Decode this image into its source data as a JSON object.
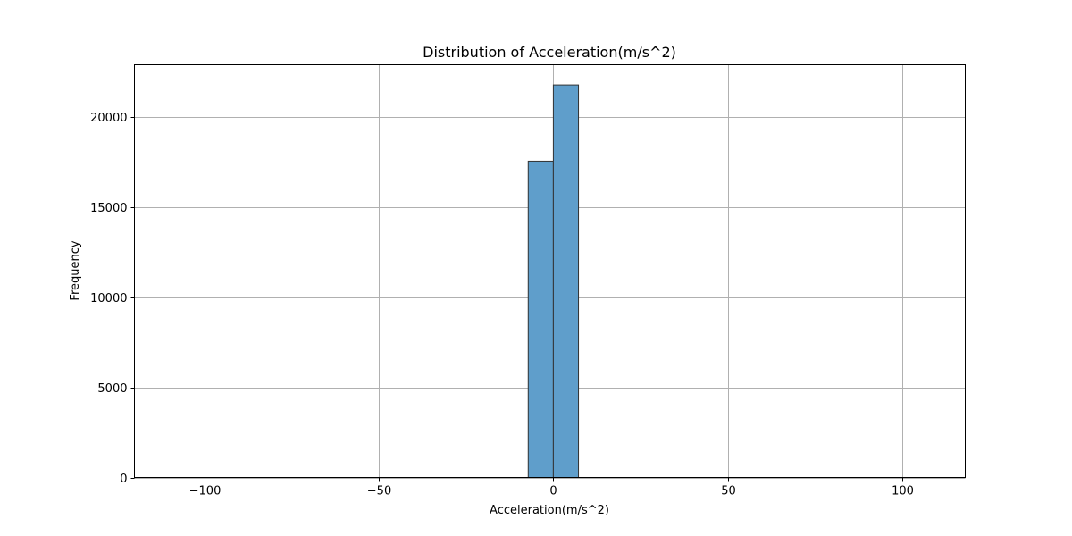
{
  "chart_data": {
    "type": "bar",
    "title": "Distribution of Acceleration(m/s^2)",
    "xlabel": "Acceleration(m/s^2)",
    "ylabel": "Frequency",
    "xlim": [
      -120,
      118
    ],
    "ylim": [
      0,
      22900
    ],
    "xticks": [
      -100,
      -50,
      0,
      50,
      100
    ],
    "xtick_labels": [
      "−100",
      "−50",
      "0",
      "50",
      "100"
    ],
    "yticks": [
      0,
      5000,
      10000,
      15000,
      20000
    ],
    "ytick_labels": [
      "0",
      "5000",
      "10000",
      "15000",
      "20000"
    ],
    "grid": true,
    "bar_color": "#5f9ecb",
    "edge_color": "#333333",
    "bins": [
      {
        "x0": -109.2,
        "x1": -102.0,
        "count": 0
      },
      {
        "x0": -102.0,
        "x1": -94.8,
        "count": 0
      },
      {
        "x0": -94.8,
        "x1": -87.6,
        "count": 0
      },
      {
        "x0": -87.6,
        "x1": -80.4,
        "count": 0
      },
      {
        "x0": -80.4,
        "x1": -73.2,
        "count": 0
      },
      {
        "x0": -73.2,
        "x1": -66.0,
        "count": 0
      },
      {
        "x0": -66.0,
        "x1": -58.8,
        "count": 0
      },
      {
        "x0": -58.8,
        "x1": -51.6,
        "count": 0
      },
      {
        "x0": -51.6,
        "x1": -44.4,
        "count": 0
      },
      {
        "x0": -44.4,
        "x1": -37.2,
        "count": 0
      },
      {
        "x0": -37.2,
        "x1": -30.0,
        "count": 0
      },
      {
        "x0": -30.0,
        "x1": -22.8,
        "count": 0
      },
      {
        "x0": -22.8,
        "x1": -15.6,
        "count": 0
      },
      {
        "x0": -15.6,
        "x1": -8.4,
        "count": 0
      },
      {
        "x0": -7.2,
        "x1": 0.0,
        "count": 17550
      },
      {
        "x0": 0.0,
        "x1": 7.2,
        "count": 21780
      },
      {
        "x0": 7.2,
        "x1": 14.4,
        "count": 0
      },
      {
        "x0": 14.4,
        "x1": 21.6,
        "count": 0
      },
      {
        "x0": 21.6,
        "x1": 28.8,
        "count": 0
      },
      {
        "x0": 28.8,
        "x1": 36.0,
        "count": 0
      },
      {
        "x0": 36.0,
        "x1": 43.2,
        "count": 0
      },
      {
        "x0": 43.2,
        "x1": 50.4,
        "count": 0
      },
      {
        "x0": 50.4,
        "x1": 57.6,
        "count": 0
      },
      {
        "x0": 57.6,
        "x1": 64.8,
        "count": 0
      },
      {
        "x0": 64.8,
        "x1": 72.0,
        "count": 0
      },
      {
        "x0": 72.0,
        "x1": 79.2,
        "count": 0
      },
      {
        "x0": 79.2,
        "x1": 86.4,
        "count": 0
      },
      {
        "x0": 86.4,
        "x1": 93.6,
        "count": 0
      },
      {
        "x0": 93.6,
        "x1": 100.8,
        "count": 0
      },
      {
        "x0": 100.8,
        "x1": 108.0,
        "count": 0
      }
    ]
  }
}
